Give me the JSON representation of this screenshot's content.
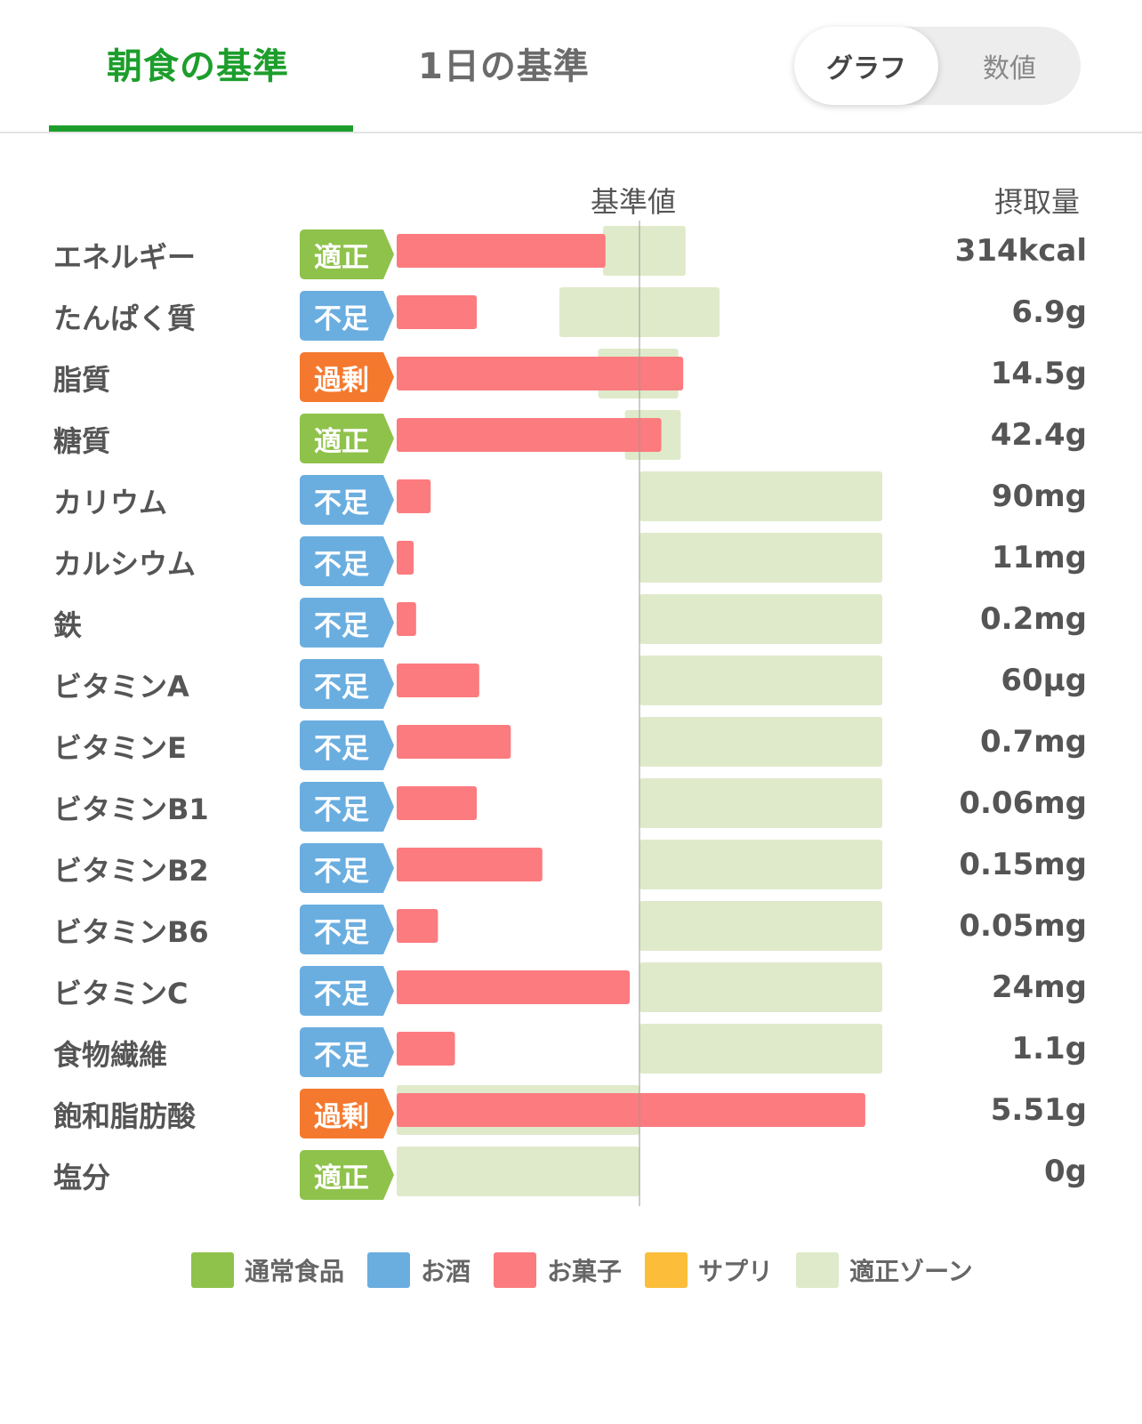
{
  "tabs": {
    "active_label": "朝食の基準",
    "inactive_label": "1日の基準"
  },
  "view_toggle": {
    "graph_label": "グラフ",
    "number_label": "数値",
    "selected": "グラフ"
  },
  "headers": {
    "reference": "基準値",
    "intake": "摂取量"
  },
  "status_colors": {
    "適正": "#8fc24b",
    "不足": "#6aaee0",
    "過剰": "#f4792f"
  },
  "colors": {
    "bar": "#fb7b7f",
    "zone": "#dfeaca",
    "accent": "#1d9e2c"
  },
  "chart_data": {
    "type": "bar",
    "reference_value": 1.0,
    "series": [
      {
        "name": "お菓子",
        "color": "#fb7b7f"
      },
      {
        "name": "適正ゾーン",
        "color": "#dfeaca"
      }
    ],
    "rows": [
      {
        "label": "エネルギー",
        "status": "適正",
        "intake": "314kcal",
        "ratio": 0.86,
        "zone": [
          0.85,
          1.19
        ]
      },
      {
        "label": "たんぱく質",
        "status": "不足",
        "intake": "6.9g",
        "ratio": 0.33,
        "zone": [
          0.67,
          1.33
        ]
      },
      {
        "label": "脂質",
        "status": "過剰",
        "intake": "14.5g",
        "ratio": 1.18,
        "zone": [
          0.83,
          1.16
        ]
      },
      {
        "label": "糖質",
        "status": "適正",
        "intake": "42.4g",
        "ratio": 1.09,
        "zone": [
          0.94,
          1.17
        ]
      },
      {
        "label": "カリウム",
        "status": "不足",
        "intake": "90mg",
        "ratio": 0.14,
        "zone": [
          1.0,
          2.0
        ]
      },
      {
        "label": "カルシウム",
        "status": "不足",
        "intake": "11mg",
        "ratio": 0.07,
        "zone": [
          1.0,
          2.0
        ]
      },
      {
        "label": "鉄",
        "status": "不足",
        "intake": "0.2mg",
        "ratio": 0.08,
        "zone": [
          1.0,
          2.0
        ]
      },
      {
        "label": "ビタミンA",
        "status": "不足",
        "intake": "60μg",
        "ratio": 0.34,
        "zone": [
          1.0,
          2.0
        ]
      },
      {
        "label": "ビタミンE",
        "status": "不足",
        "intake": "0.7mg",
        "ratio": 0.47,
        "zone": [
          1.0,
          2.0
        ]
      },
      {
        "label": "ビタミンB1",
        "status": "不足",
        "intake": "0.06mg",
        "ratio": 0.33,
        "zone": [
          1.0,
          2.0
        ]
      },
      {
        "label": "ビタミンB2",
        "status": "不足",
        "intake": "0.15mg",
        "ratio": 0.6,
        "zone": [
          1.0,
          2.0
        ]
      },
      {
        "label": "ビタミンB6",
        "status": "不足",
        "intake": "0.05mg",
        "ratio": 0.17,
        "zone": [
          1.0,
          2.0
        ]
      },
      {
        "label": "ビタミンC",
        "status": "不足",
        "intake": "24mg",
        "ratio": 0.96,
        "zone": [
          1.0,
          2.0
        ]
      },
      {
        "label": "食物繊維",
        "status": "不足",
        "intake": "1.1g",
        "ratio": 0.24,
        "zone": [
          1.0,
          2.0
        ]
      },
      {
        "label": "飽和脂肪酸",
        "status": "過剰",
        "intake": "5.51g",
        "ratio": 1.93,
        "zone": [
          0.0,
          1.0
        ]
      },
      {
        "label": "塩分",
        "status": "適正",
        "intake": "0g",
        "ratio": 0.0,
        "zone": [
          0.0,
          1.0
        ]
      }
    ]
  },
  "legend": [
    {
      "label": "通常食品",
      "color": "#8fc24b"
    },
    {
      "label": "お酒",
      "color": "#6aaee0"
    },
    {
      "label": "お菓子",
      "color": "#fb7b7f"
    },
    {
      "label": "サプリ",
      "color": "#fbbd3a"
    },
    {
      "label": "適正ゾーン",
      "color": "#dfeaca"
    }
  ]
}
